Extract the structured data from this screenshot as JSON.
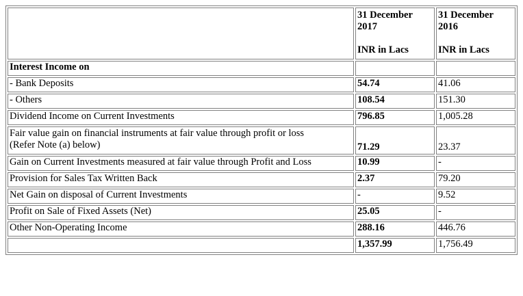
{
  "header": {
    "col1": {
      "date_line1": "31 December",
      "date_line2": "2017",
      "unit": "INR in Lacs"
    },
    "col2": {
      "date_line1": "31 December",
      "date_line2": "2016",
      "unit": "INR in Lacs"
    }
  },
  "rows": [
    {
      "label": "Interest Income on",
      "v2017": "",
      "v2016": ""
    },
    {
      "label": "- Bank Deposits",
      "v2017": "54.74",
      "v2016": "41.06"
    },
    {
      "label": "- Others",
      "v2017": "108.54",
      "v2016": "151.30"
    },
    {
      "label": "Dividend Income on Current Investments",
      "v2017": "796.85",
      "v2016": "1,005.28"
    },
    {
      "label_line1": "Fair value gain on financial instruments at fair value through profit or loss",
      "label_line2": "(Refer Note (a) below)",
      "v2017": "71.29",
      "v2016": "23.37"
    },
    {
      "label": "Gain on Current Investments measured at fair value through Profit and Loss",
      "v2017": "10.99",
      "v2016": "-"
    },
    {
      "label": "Provision for Sales Tax Written Back",
      "v2017": "2.37",
      "v2016": "79.20"
    },
    {
      "label": "Net Gain on disposal of Current Investments",
      "v2017": "-",
      "v2016": "9.52"
    },
    {
      "label": "Profit on Sale of Fixed Assets (Net)",
      "v2017": "25.05",
      "v2016": "-"
    },
    {
      "label": "Other Non-Operating Income",
      "v2017": "288.16",
      "v2016": "446.76"
    },
    {
      "label": "",
      "v2017": "1,357.99",
      "v2016": "1,756.49"
    }
  ]
}
